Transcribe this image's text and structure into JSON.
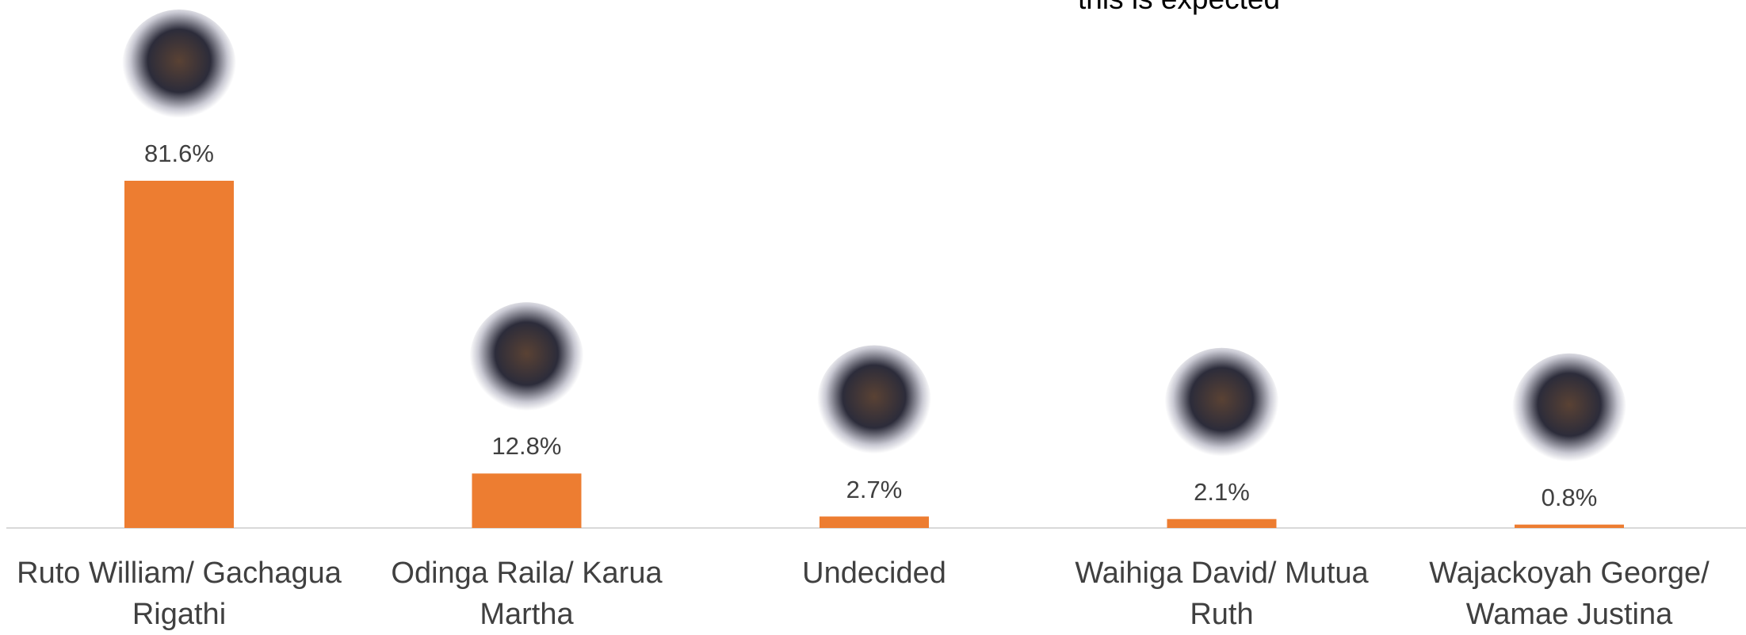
{
  "chart_data": {
    "type": "bar",
    "annotation": "this is expected",
    "categories": [
      "Ruto William/ Gachagua Rigathi",
      "Odinga Raila/ Karua Martha",
      "Undecided",
      "Waihiga David/ Mutua Ruth",
      "Wajackoyah George/ Wamae Justina"
    ],
    "values": [
      81.6,
      12.8,
      2.7,
      2.1,
      0.8
    ],
    "value_labels": [
      "81.6%",
      "12.8%",
      "2.7%",
      "2.1%",
      "0.8%"
    ],
    "color": "#ed7d31"
  }
}
